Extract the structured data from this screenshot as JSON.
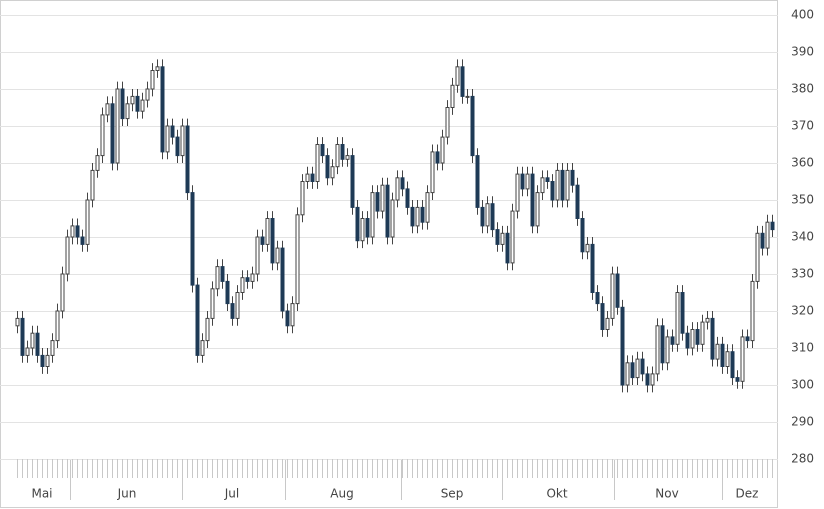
{
  "chart_data": {
    "type": "candlestick",
    "ylim": [
      280,
      400
    ],
    "yticks": [
      280,
      290,
      300,
      310,
      320,
      330,
      340,
      350,
      360,
      370,
      380,
      390,
      400
    ],
    "grid": true,
    "up_color": "#ffffff",
    "down_color": "#1e3a56",
    "wick_color": "#444444",
    "categories": [
      null,
      null,
      null,
      null,
      null,
      "Mai",
      null,
      null,
      null,
      null,
      null,
      null,
      null,
      null,
      null,
      null,
      null,
      null,
      null,
      null,
      null,
      null,
      "Jun",
      null,
      null,
      null,
      null,
      null,
      null,
      null,
      null,
      null,
      null,
      null,
      null,
      null,
      null,
      null,
      null,
      null,
      null,
      null,
      null,
      "Jul",
      null,
      null,
      null,
      null,
      null,
      null,
      null,
      null,
      null,
      null,
      null,
      null,
      null,
      null,
      null,
      null,
      null,
      null,
      null,
      null,
      null,
      "Aug",
      null,
      null,
      null,
      null,
      null,
      null,
      null,
      null,
      null,
      null,
      null,
      null,
      null,
      null,
      null,
      null,
      null,
      null,
      null,
      null,
      null,
      "Sep",
      null,
      null,
      null,
      null,
      null,
      null,
      null,
      null,
      null,
      null,
      null,
      null,
      null,
      null,
      null,
      null,
      null,
      null,
      null,
      null,
      "Okt",
      null,
      null,
      null,
      null,
      null,
      null,
      null,
      null,
      null,
      null,
      null,
      null,
      null,
      null,
      null,
      null,
      null,
      null,
      null,
      null,
      null,
      "Nov",
      null,
      null,
      null,
      null,
      null,
      null,
      null,
      null,
      null,
      null,
      null,
      null,
      null,
      null,
      null,
      "Dez",
      null,
      null,
      null,
      null,
      null
    ],
    "open": [
      316,
      318,
      308,
      310,
      314,
      308,
      305,
      308,
      312,
      320,
      330,
      340,
      343,
      340,
      338,
      350,
      358,
      362,
      373,
      376,
      360,
      380,
      372,
      376,
      378,
      374,
      377,
      380,
      385,
      386,
      363,
      370,
      367,
      362,
      370,
      352,
      327,
      308,
      312,
      318,
      326,
      332,
      328,
      322,
      318,
      325,
      329,
      328,
      330,
      340,
      338,
      345,
      333,
      337,
      320,
      316,
      322,
      346,
      355,
      357,
      355,
      365,
      362,
      356,
      359,
      365,
      361,
      362,
      348,
      339,
      345,
      340,
      352,
      347,
      354,
      340,
      350,
      356,
      353,
      348,
      343,
      348,
      344,
      352,
      363,
      360,
      367,
      375,
      381,
      386,
      378,
      378,
      362,
      348,
      343,
      349,
      342,
      338,
      341,
      333,
      347,
      357,
      353,
      357,
      343,
      352,
      356,
      355,
      350,
      358,
      350,
      358,
      354,
      345,
      336,
      338,
      325,
      322,
      315,
      318,
      330,
      321,
      300,
      306,
      302,
      307,
      303,
      300,
      303,
      316,
      306,
      313,
      311,
      325,
      314,
      310,
      315,
      311,
      317,
      318,
      307,
      311,
      305,
      309,
      302,
      301,
      313,
      312,
      328,
      341,
      337,
      344
    ],
    "high": [
      320,
      320,
      312,
      316,
      316,
      310,
      310,
      314,
      322,
      332,
      342,
      345,
      345,
      342,
      352,
      360,
      364,
      375,
      378,
      378,
      382,
      382,
      378,
      380,
      380,
      379,
      382,
      387,
      388,
      388,
      372,
      372,
      369,
      372,
      372,
      354,
      329,
      314,
      320,
      328,
      334,
      334,
      330,
      324,
      327,
      331,
      331,
      332,
      342,
      342,
      347,
      347,
      339,
      339,
      322,
      324,
      348,
      357,
      359,
      359,
      367,
      367,
      364,
      361,
      367,
      367,
      364,
      364,
      350,
      347,
      347,
      354,
      354,
      356,
      356,
      352,
      358,
      358,
      355,
      350,
      350,
      350,
      354,
      365,
      365,
      369,
      377,
      383,
      388,
      388,
      380,
      380,
      364,
      350,
      351,
      351,
      344,
      343,
      343,
      349,
      359,
      359,
      359,
      359,
      354,
      358,
      358,
      357,
      360,
      360,
      360,
      360,
      356,
      347,
      340,
      340,
      327,
      324,
      320,
      332,
      332,
      323,
      308,
      308,
      309,
      309,
      305,
      305,
      318,
      318,
      315,
      315,
      327,
      327,
      316,
      317,
      317,
      319,
      320,
      320,
      313,
      313,
      311,
      311,
      304,
      315,
      315,
      330,
      343,
      343,
      346,
      346
    ],
    "low": [
      314,
      306,
      306,
      308,
      306,
      303,
      303,
      306,
      310,
      318,
      328,
      338,
      338,
      336,
      336,
      348,
      356,
      360,
      371,
      358,
      358,
      370,
      370,
      374,
      372,
      372,
      375,
      378,
      383,
      361,
      361,
      365,
      360,
      360,
      350,
      325,
      306,
      306,
      310,
      316,
      324,
      326,
      320,
      316,
      316,
      323,
      326,
      326,
      328,
      336,
      336,
      331,
      331,
      318,
      314,
      314,
      320,
      344,
      353,
      353,
      353,
      360,
      354,
      354,
      357,
      359,
      359,
      346,
      337,
      337,
      338,
      338,
      345,
      345,
      338,
      338,
      348,
      351,
      346,
      341,
      341,
      342,
      342,
      350,
      358,
      358,
      365,
      373,
      379,
      376,
      376,
      360,
      346,
      341,
      341,
      340,
      336,
      336,
      331,
      331,
      345,
      351,
      351,
      341,
      341,
      350,
      353,
      348,
      348,
      348,
      348,
      352,
      343,
      334,
      334,
      323,
      320,
      313,
      313,
      316,
      319,
      298,
      298,
      300,
      300,
      301,
      298,
      298,
      301,
      304,
      304,
      309,
      309,
      312,
      308,
      308,
      309,
      309,
      315,
      305,
      305,
      303,
      303,
      300,
      299,
      299,
      310,
      310,
      326,
      335,
      335,
      340
    ],
    "close": [
      318,
      308,
      310,
      314,
      308,
      305,
      308,
      312,
      320,
      330,
      340,
      343,
      340,
      338,
      350,
      358,
      362,
      373,
      376,
      360,
      380,
      372,
      376,
      378,
      374,
      377,
      380,
      385,
      386,
      363,
      370,
      367,
      362,
      370,
      352,
      327,
      308,
      312,
      318,
      326,
      332,
      328,
      322,
      318,
      325,
      329,
      328,
      330,
      340,
      338,
      345,
      333,
      337,
      320,
      316,
      322,
      346,
      355,
      357,
      355,
      365,
      362,
      356,
      359,
      365,
      361,
      362,
      348,
      339,
      345,
      340,
      352,
      347,
      354,
      340,
      350,
      356,
      353,
      348,
      343,
      348,
      344,
      352,
      363,
      360,
      367,
      375,
      381,
      386,
      378,
      378,
      362,
      348,
      343,
      349,
      342,
      338,
      341,
      333,
      347,
      357,
      353,
      357,
      343,
      352,
      356,
      355,
      350,
      358,
      350,
      358,
      354,
      345,
      336,
      338,
      325,
      322,
      315,
      318,
      330,
      321,
      300,
      306,
      302,
      307,
      303,
      300,
      303,
      316,
      306,
      313,
      311,
      325,
      314,
      310,
      315,
      311,
      317,
      318,
      307,
      311,
      305,
      309,
      302,
      301,
      313,
      312,
      328,
      341,
      337,
      344,
      342
    ]
  }
}
